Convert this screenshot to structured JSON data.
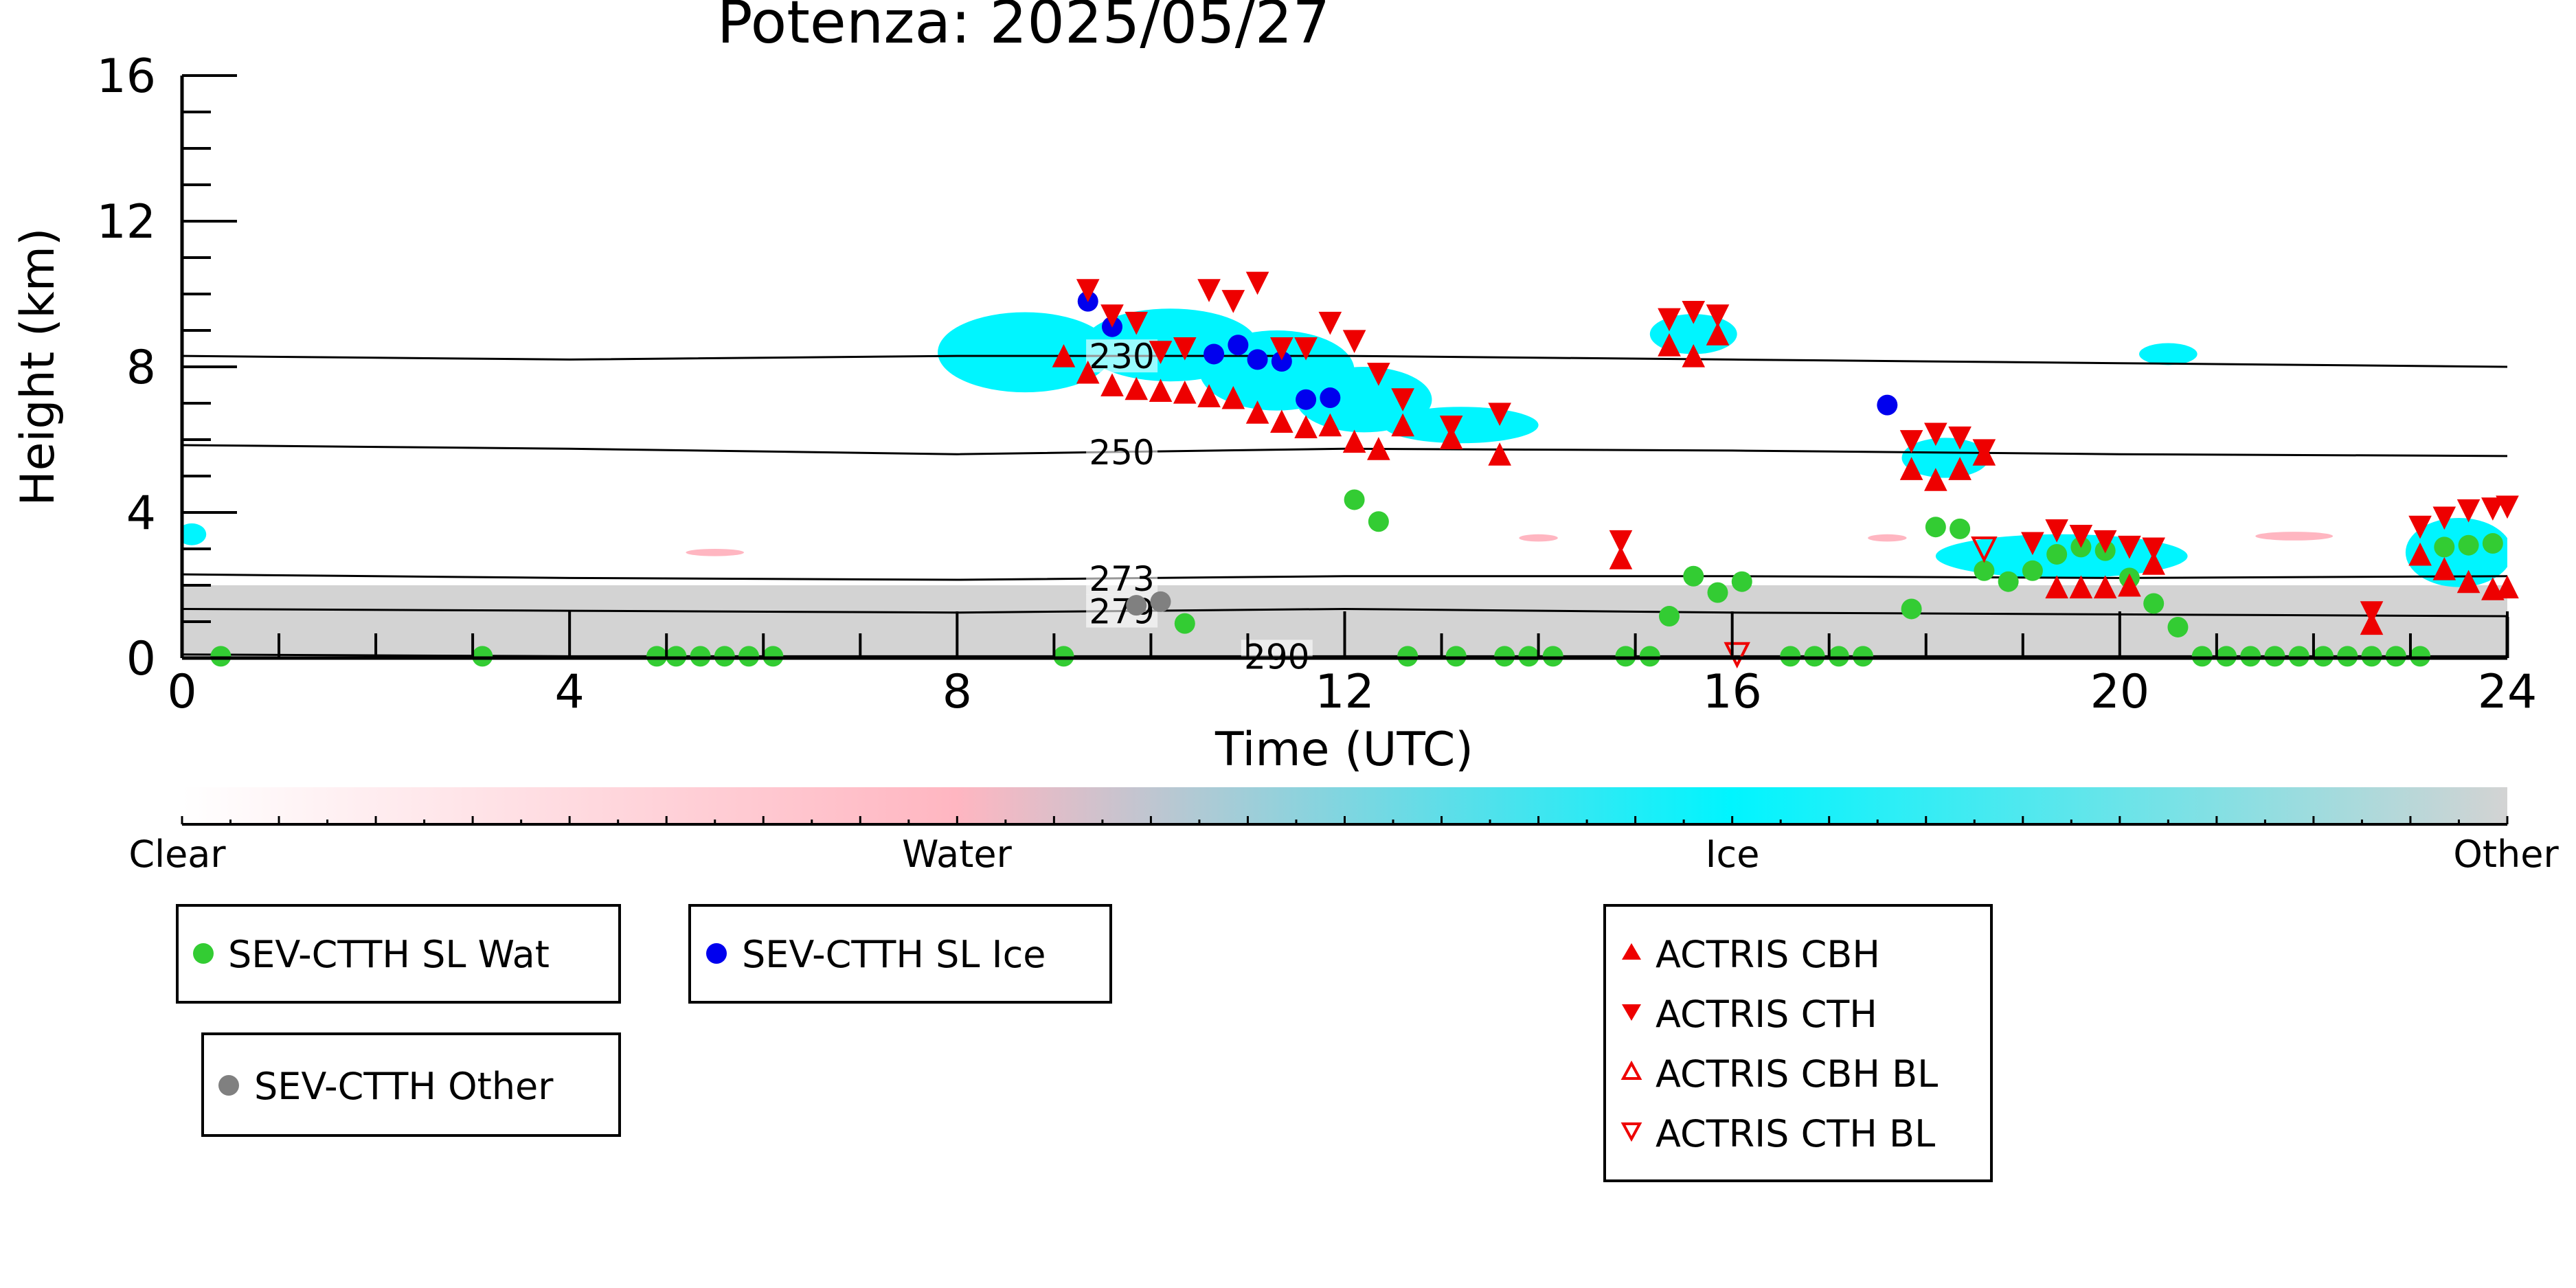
{
  "chart_data": {
    "type": "scatter",
    "title": "Potenza: 2025/05/27",
    "xlabel": "Time (UTC)",
    "ylabel": "Height (km)",
    "xlim": [
      0,
      24
    ],
    "ylim": [
      0,
      16
    ],
    "xticks": [
      0,
      4,
      8,
      12,
      16,
      20,
      24
    ],
    "yticks": [
      0,
      4,
      8,
      12,
      16
    ],
    "grid": false,
    "legend_placement": "below",
    "colorbar": {
      "labels": [
        "Clear",
        "Water",
        "Ice",
        "Other"
      ],
      "stops": [
        "#ffffff",
        "#ffb6c1",
        "#00f5ff",
        "#d3d3d3"
      ]
    },
    "isotherms": [
      {
        "label": "230",
        "label_x": 9.7,
        "points": [
          [
            0,
            8.3
          ],
          [
            4,
            8.2
          ],
          [
            8,
            8.3
          ],
          [
            12,
            8.3
          ],
          [
            16,
            8.2
          ],
          [
            20,
            8.1
          ],
          [
            24,
            8.0
          ]
        ]
      },
      {
        "label": "250",
        "label_x": 9.7,
        "points": [
          [
            0,
            5.85
          ],
          [
            4,
            5.75
          ],
          [
            8,
            5.6
          ],
          [
            12,
            5.75
          ],
          [
            16,
            5.7
          ],
          [
            20,
            5.6
          ],
          [
            24,
            5.55
          ]
        ]
      },
      {
        "label": "273",
        "label_x": 9.7,
        "points": [
          [
            0,
            2.3
          ],
          [
            4,
            2.2
          ],
          [
            8,
            2.15
          ],
          [
            12,
            2.25
          ],
          [
            16,
            2.25
          ],
          [
            20,
            2.2
          ],
          [
            24,
            2.25
          ]
        ]
      },
      {
        "label": "279",
        "label_x": 9.7,
        "points": [
          [
            0,
            1.35
          ],
          [
            4,
            1.3
          ],
          [
            8,
            1.25
          ],
          [
            12,
            1.35
          ],
          [
            16,
            1.25
          ],
          [
            20,
            1.2
          ],
          [
            24,
            1.15
          ]
        ]
      },
      {
        "label": "290",
        "label_x": 11.3,
        "points": [
          [
            0,
            0.1
          ],
          [
            4,
            0.05
          ],
          [
            8,
            0.05
          ],
          [
            11.3,
            0.05
          ],
          [
            12,
            0.05
          ],
          [
            16,
            0.05
          ],
          [
            20,
            0.05
          ],
          [
            24,
            0.05
          ]
        ]
      }
    ],
    "series": [
      {
        "name": "SEV-CTTH SL Wat",
        "color": "#33cc33",
        "marker": "circle",
        "points": [
          [
            0.4,
            0.05
          ],
          [
            3.1,
            0.05
          ],
          [
            4.9,
            0.05
          ],
          [
            5.1,
            0.05
          ],
          [
            5.35,
            0.05
          ],
          [
            5.6,
            0.05
          ],
          [
            5.85,
            0.05
          ],
          [
            6.1,
            0.05
          ],
          [
            9.1,
            0.05
          ],
          [
            10.35,
            0.95
          ],
          [
            12.1,
            4.35
          ],
          [
            12.35,
            3.75
          ],
          [
            12.65,
            0.05
          ],
          [
            13.15,
            0.05
          ],
          [
            13.65,
            0.05
          ],
          [
            13.9,
            0.05
          ],
          [
            14.15,
            0.05
          ],
          [
            14.9,
            0.05
          ],
          [
            15.15,
            0.05
          ],
          [
            15.35,
            1.15
          ],
          [
            15.6,
            2.25
          ],
          [
            15.85,
            1.8
          ],
          [
            16.1,
            2.1
          ],
          [
            16.6,
            0.05
          ],
          [
            16.85,
            0.05
          ],
          [
            17.1,
            0.05
          ],
          [
            17.35,
            0.05
          ],
          [
            17.85,
            1.35
          ],
          [
            18.1,
            3.6
          ],
          [
            18.35,
            3.55
          ],
          [
            18.6,
            2.4
          ],
          [
            18.85,
            2.1
          ],
          [
            19.1,
            2.4
          ],
          [
            19.35,
            2.85
          ],
          [
            19.6,
            3.05
          ],
          [
            19.85,
            2.95
          ],
          [
            20.1,
            2.2
          ],
          [
            20.35,
            1.5
          ],
          [
            20.6,
            0.85
          ],
          [
            20.85,
            0.05
          ],
          [
            21.1,
            0.05
          ],
          [
            21.35,
            0.05
          ],
          [
            21.6,
            0.05
          ],
          [
            21.85,
            0.05
          ],
          [
            22.1,
            0.05
          ],
          [
            22.35,
            0.05
          ],
          [
            22.6,
            0.05
          ],
          [
            22.85,
            0.05
          ],
          [
            23.1,
            0.05
          ],
          [
            23.35,
            3.05
          ],
          [
            23.6,
            3.1
          ],
          [
            23.85,
            3.15
          ]
        ]
      },
      {
        "name": "SEV-CTTH SL Ice",
        "color": "#0000ee",
        "marker": "circle",
        "points": [
          [
            9.35,
            9.8
          ],
          [
            9.6,
            9.1
          ],
          [
            10.65,
            8.35
          ],
          [
            10.9,
            8.6
          ],
          [
            11.1,
            8.2
          ],
          [
            11.35,
            8.15
          ],
          [
            11.6,
            7.1
          ],
          [
            11.85,
            7.15
          ],
          [
            17.6,
            6.95
          ]
        ]
      },
      {
        "name": "SEV-CTTH Other",
        "color": "#808080",
        "marker": "circle",
        "points": [
          [
            9.85,
            1.45
          ],
          [
            10.1,
            1.55
          ]
        ]
      },
      {
        "name": "ACTRIS CBH",
        "color": "#ee0000",
        "marker": "triangle-up",
        "points": [
          [
            9.1,
            8.3
          ],
          [
            9.35,
            7.85
          ],
          [
            9.6,
            7.5
          ],
          [
            9.85,
            7.4
          ],
          [
            10.1,
            7.35
          ],
          [
            10.35,
            7.3
          ],
          [
            10.6,
            7.2
          ],
          [
            10.85,
            7.15
          ],
          [
            11.1,
            6.75
          ],
          [
            11.35,
            6.5
          ],
          [
            11.6,
            6.35
          ],
          [
            11.85,
            6.4
          ],
          [
            12.1,
            5.95
          ],
          [
            12.35,
            5.75
          ],
          [
            12.6,
            6.4
          ],
          [
            13.1,
            6.05
          ],
          [
            13.6,
            5.6
          ],
          [
            14.85,
            2.75
          ],
          [
            15.35,
            8.6
          ],
          [
            15.6,
            8.3
          ],
          [
            15.85,
            8.9
          ],
          [
            17.85,
            5.2
          ],
          [
            18.1,
            4.9
          ],
          [
            18.35,
            5.2
          ],
          [
            18.6,
            5.6
          ],
          [
            19.35,
            1.95
          ],
          [
            19.6,
            1.95
          ],
          [
            19.85,
            1.95
          ],
          [
            20.1,
            2.0
          ],
          [
            20.35,
            2.6
          ],
          [
            22.6,
            0.95
          ],
          [
            23.1,
            2.85
          ],
          [
            23.35,
            2.45
          ],
          [
            23.6,
            2.1
          ],
          [
            23.85,
            1.9
          ],
          [
            24.0,
            1.95
          ]
        ]
      },
      {
        "name": "ACTRIS CTH",
        "color": "#ee0000",
        "marker": "triangle-down",
        "points": [
          [
            9.35,
            10.1
          ],
          [
            9.6,
            9.4
          ],
          [
            9.85,
            9.2
          ],
          [
            10.1,
            8.4
          ],
          [
            10.35,
            8.5
          ],
          [
            10.6,
            10.1
          ],
          [
            10.85,
            9.8
          ],
          [
            11.1,
            10.3
          ],
          [
            11.35,
            8.5
          ],
          [
            11.6,
            8.5
          ],
          [
            11.85,
            9.2
          ],
          [
            12.1,
            8.7
          ],
          [
            12.35,
            7.8
          ],
          [
            12.6,
            7.1
          ],
          [
            13.1,
            6.35
          ],
          [
            13.6,
            6.7
          ],
          [
            14.85,
            3.2
          ],
          [
            15.35,
            9.3
          ],
          [
            15.6,
            9.5
          ],
          [
            15.85,
            9.4
          ],
          [
            17.85,
            5.95
          ],
          [
            18.1,
            6.15
          ],
          [
            18.35,
            6.05
          ],
          [
            18.6,
            5.7
          ],
          [
            19.1,
            3.15
          ],
          [
            19.35,
            3.5
          ],
          [
            19.6,
            3.35
          ],
          [
            19.85,
            3.2
          ],
          [
            20.1,
            3.05
          ],
          [
            20.35,
            3.0
          ],
          [
            22.6,
            1.25
          ],
          [
            23.1,
            3.6
          ],
          [
            23.35,
            3.85
          ],
          [
            23.6,
            4.05
          ],
          [
            23.85,
            4.1
          ],
          [
            24.0,
            4.15
          ]
        ]
      },
      {
        "name": "ACTRIS CBH BL",
        "color": "#ee0000",
        "marker": "triangle-up-open",
        "points": []
      },
      {
        "name": "ACTRIS CTH BL",
        "color": "#ee0000",
        "marker": "triangle-down-open",
        "points": [
          [
            18.6,
            3.0
          ],
          [
            16.05,
            0.1
          ]
        ]
      }
    ],
    "background": {
      "other_regions": [
        [
          0,
          24,
          0,
          2.0
        ]
      ],
      "ice_regions": [
        {
          "x": 8.7,
          "y": 8.4,
          "rx": 0.9,
          "ry": 1.1
        },
        {
          "x": 10.2,
          "y": 8.6,
          "rx": 0.9,
          "ry": 1.0
        },
        {
          "x": 11.3,
          "y": 7.9,
          "rx": 0.8,
          "ry": 1.1
        },
        {
          "x": 12.2,
          "y": 7.1,
          "rx": 0.7,
          "ry": 0.9
        },
        {
          "x": 13.2,
          "y": 6.4,
          "rx": 0.8,
          "ry": 0.5
        },
        {
          "x": 15.6,
          "y": 8.9,
          "rx": 0.45,
          "ry": 0.55
        },
        {
          "x": 18.2,
          "y": 5.5,
          "rx": 0.45,
          "ry": 0.55
        },
        {
          "x": 19.4,
          "y": 2.8,
          "rx": 1.3,
          "ry": 0.6
        },
        {
          "x": 23.5,
          "y": 2.9,
          "rx": 0.55,
          "ry": 0.95
        },
        {
          "x": 0.1,
          "y": 3.4,
          "rx": 0.15,
          "ry": 0.3
        },
        {
          "x": 20.5,
          "y": 8.35,
          "rx": 0.3,
          "ry": 0.3
        }
      ],
      "water_regions": [
        {
          "x": 5.5,
          "y": 2.9,
          "rx": 0.3,
          "ry": 0.1
        },
        {
          "x": 14.0,
          "y": 3.3,
          "rx": 0.2,
          "ry": 0.1
        },
        {
          "x": 17.6,
          "y": 3.3,
          "rx": 0.2,
          "ry": 0.1
        },
        {
          "x": 21.8,
          "y": 3.35,
          "rx": 0.4,
          "ry": 0.12
        }
      ]
    }
  },
  "legends": [
    {
      "id": "wat",
      "entries": [
        {
          "label": "SEV-CTTH SL Wat",
          "series": 0
        }
      ]
    },
    {
      "id": "ice",
      "entries": [
        {
          "label": "SEV-CTTH SL Ice",
          "series": 1
        }
      ]
    },
    {
      "id": "other",
      "entries": [
        {
          "label": "SEV-CTTH Other",
          "series": 2
        }
      ]
    },
    {
      "id": "actris",
      "entries": [
        {
          "label": "ACTRIS CBH",
          "series": 3
        },
        {
          "label": "ACTRIS CTH",
          "series": 4
        },
        {
          "label": "ACTRIS CBH BL",
          "series": 5
        },
        {
          "label": "ACTRIS CTH BL",
          "series": 6
        }
      ]
    }
  ]
}
